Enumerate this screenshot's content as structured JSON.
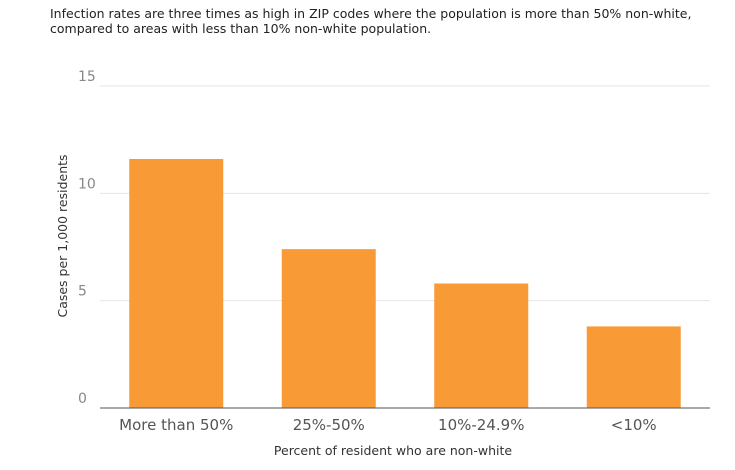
{
  "subtitle": "Infection rates are three times as high in ZIP codes where the population is more than 50% non-white, compared to areas with less than 10% non-white population.",
  "chart_data": {
    "type": "bar",
    "title": "",
    "categories": [
      "More than 50%",
      "25%-50%",
      "10%-24.9%",
      "<10%"
    ],
    "values": [
      11.6,
      7.4,
      5.8,
      3.8
    ],
    "xlabel": "Percent of resident who are non-white",
    "ylabel": "Cases per 1,000 residents",
    "ylim": [
      0,
      15
    ],
    "yticks": [
      "0",
      "5",
      "10",
      "15"
    ],
    "grid": true,
    "bar_color": "#f89a35"
  }
}
